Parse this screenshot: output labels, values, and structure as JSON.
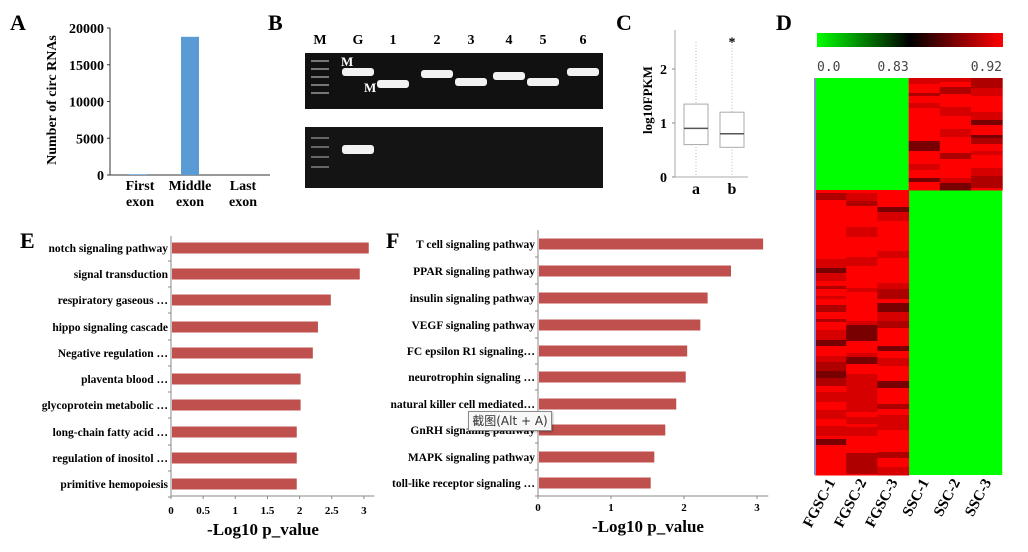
{
  "chart_data": [
    {
      "panel": "A",
      "type": "bar",
      "categories": [
        "First exon",
        "Middle exon",
        "Last exon"
      ],
      "category_lines": [
        [
          "First",
          "exon"
        ],
        [
          "Middle",
          "exon"
        ],
        [
          "Last",
          "exon"
        ]
      ],
      "values": [
        100,
        18800,
        0
      ],
      "ylabel": "Number of circ RNAs",
      "ylim": [
        0,
        20000
      ],
      "yticks": [
        "0",
        "5000",
        "10000",
        "15000",
        "20000"
      ],
      "color": "#5b9bd5"
    },
    {
      "panel": "B",
      "type": "gel",
      "lane_labels": [
        "M",
        "G",
        "1",
        "2",
        "3",
        "4",
        "5",
        "6"
      ],
      "marker_labels": [
        "M",
        "M"
      ]
    },
    {
      "panel": "C",
      "type": "box",
      "categories": [
        "a",
        "b"
      ],
      "ylabel": "log10FPKM",
      "ylim": [
        0,
        2.6
      ],
      "yticks": [
        "0",
        "1",
        "2"
      ],
      "boxes": [
        {
          "name": "a",
          "min": 0,
          "q1": 0.6,
          "median": 0.9,
          "q3": 1.35,
          "max": 2.5,
          "annotation": ""
        },
        {
          "name": "b",
          "min": 0,
          "q1": 0.55,
          "median": 0.8,
          "q3": 1.2,
          "max": 2.45,
          "annotation": "*"
        }
      ]
    },
    {
      "panel": "D",
      "type": "heatmap",
      "columns": [
        "FGSC-1",
        "FGSC-2",
        "FGSC-3",
        "SSC-1",
        "SSC-2",
        "SSC-3"
      ],
      "colorbar_labels": [
        "0.0",
        "0.83",
        "0.92"
      ],
      "colors": {
        "low": "#00ff00",
        "mid": "#000000",
        "high": "#ff0000"
      }
    },
    {
      "panel": "E",
      "type": "bar",
      "orientation": "horizontal",
      "categories": [
        "notch signaling pathway",
        "signal transduction",
        "respiratory gaseous …",
        "hippo signaling cascade",
        "Negative regulation …",
        "plaventa blood …",
        "glycoprotein metabolic …",
        "long-chain fatty acid …",
        "regulation of inositol …",
        "primitive hemopoiesis"
      ],
      "values": [
        3.06,
        2.92,
        2.47,
        2.27,
        2.19,
        2.0,
        2.0,
        1.94,
        1.94,
        1.94
      ],
      "xlabel": "-Log10 p_value",
      "xlim": [
        0,
        3.1
      ],
      "xticks": [
        "0",
        "0.5",
        "1",
        "1.5",
        "2",
        "2.5",
        "3"
      ],
      "color": "#c0504d"
    },
    {
      "panel": "F",
      "type": "bar",
      "orientation": "horizontal",
      "categories": [
        "T cell signaling pathway",
        "PPAR signaling pathway",
        "insulin signaling pathway",
        "VEGF signaling pathway",
        "FC epsilon R1 signaling…",
        "neurotrophin signaling …",
        "natural killer cell mediated…",
        "GnRH signaling pathway",
        "MAPK signaling pathway",
        "toll-like receptor signaling …"
      ],
      "values": [
        3.07,
        2.63,
        2.31,
        2.21,
        2.03,
        2.01,
        1.88,
        1.73,
        1.58,
        1.53
      ],
      "xlabel": "-Log10 p_value",
      "xlim": [
        0,
        3.1
      ],
      "xticks": [
        "0",
        "1",
        "2",
        "3"
      ],
      "color": "#c0504d"
    }
  ],
  "panel_labels": [
    "A",
    "B",
    "C",
    "D",
    "E",
    "F"
  ],
  "tooltip": "截图(Alt + A)"
}
